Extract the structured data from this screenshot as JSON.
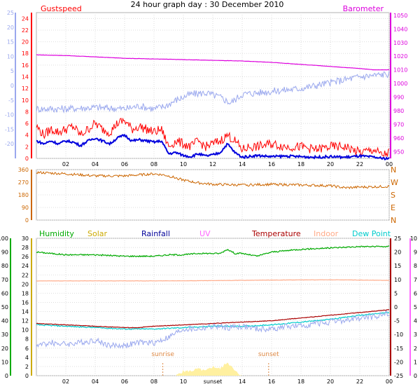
{
  "title": "24 hour graph day : 30 December 2010",
  "colors": {
    "gust": "#ff0000",
    "wind": "#0000dd",
    "temp_left": "#9aa8ee",
    "baro": "#dd00dd",
    "direction": "#cc6600",
    "humidity": "#00aa00",
    "solar": "#ccaa00",
    "rainfall": "#000099",
    "uv": "#ff66ff",
    "temperature": "#aa0000",
    "indoor": "#ffaa88",
    "dewpoint": "#00cccc",
    "grid": "#dddddd",
    "sunmark": "#dd8844",
    "solarfill": "#fff0a0"
  },
  "chart_data": [
    {
      "type": "line",
      "panel": "top",
      "left_label": "Gustspeed",
      "right_label": "Barometer",
      "x_ticks": [
        "02",
        "04",
        "06",
        "08",
        "10",
        "12",
        "14",
        "16",
        "18",
        "20",
        "22",
        "00"
      ],
      "y_left_ticks": [
        "0",
        "2",
        "4",
        "6",
        "8",
        "10",
        "12",
        "14",
        "16",
        "18",
        "20",
        "22",
        "24"
      ],
      "y_left_range": [
        0,
        25
      ],
      "y_far_left_ticks": [
        "-20",
        "-15",
        "-10",
        "-5",
        "0",
        "5",
        "10",
        "15",
        "20",
        "25"
      ],
      "y_far_left_range": [
        -25,
        25
      ],
      "y_right_ticks": [
        "950",
        "960",
        "970",
        "980",
        "990",
        "1000",
        "1010",
        "1020",
        "1030",
        "1040",
        "1050"
      ],
      "y_right_range": [
        945,
        1052
      ],
      "series": [
        {
          "key": "baro",
          "axis": "right",
          "x": [
            0,
            2,
            4,
            6,
            8,
            10,
            12,
            14,
            16,
            18,
            20,
            22,
            23,
            24
          ],
          "y": [
            1021,
            1020.5,
            1019.5,
            1018.5,
            1018,
            1017.5,
            1017,
            1016.5,
            1015.5,
            1014,
            1012.5,
            1011,
            1010,
            1010
          ]
        },
        {
          "key": "temp",
          "axis": "far_left",
          "x": [
            0,
            2,
            4,
            6,
            7,
            8,
            8.8,
            9.5,
            10.5,
            11.5,
            12.5,
            13.2,
            14,
            16,
            18,
            20,
            22,
            24
          ],
          "y": [
            -8,
            -8,
            -7.5,
            -8,
            -7,
            -8,
            -7,
            -5,
            -3,
            -2.5,
            -4,
            -6,
            -3,
            -2,
            -1,
            1,
            3,
            4
          ]
        },
        {
          "key": "gust",
          "axis": "left",
          "x": [
            0,
            0.5,
            1,
            1.5,
            2,
            2.5,
            3,
            3.5,
            4,
            4.5,
            5,
            5.5,
            6,
            6.5,
            7,
            7.5,
            8,
            8.5,
            9,
            9.5,
            10,
            10.5,
            11,
            11.5,
            12,
            12.5,
            13,
            13.5,
            14,
            14.5,
            15,
            16,
            17,
            18,
            19,
            20,
            21,
            22,
            23,
            23.5,
            24
          ],
          "y": [
            5.5,
            4,
            5,
            4.5,
            5,
            5.5,
            4,
            5,
            6,
            5,
            4.5,
            6,
            6.5,
            5,
            5.5,
            5,
            4.5,
            5,
            2,
            3,
            2.5,
            2,
            3,
            2,
            2.5,
            3,
            4,
            3,
            1.5,
            2,
            2,
            2.5,
            2,
            2,
            1.5,
            2,
            2,
            1,
            1.5,
            0.5,
            1
          ]
        },
        {
          "key": "wind",
          "axis": "left",
          "x": [
            0,
            0.5,
            1,
            1.5,
            2,
            2.5,
            3,
            3.5,
            4,
            4.5,
            5,
            5.5,
            6,
            6.5,
            7,
            7.5,
            8,
            8.5,
            9,
            9.5,
            10,
            10.5,
            11,
            11.5,
            12,
            12.5,
            13,
            13.5,
            14,
            15,
            16,
            17,
            18,
            19,
            20,
            21,
            22,
            23,
            23.5,
            24
          ],
          "y": [
            3,
            2.5,
            3,
            2.5,
            3,
            2.8,
            2.2,
            3,
            3.5,
            3,
            2.5,
            3.5,
            4,
            3,
            3.2,
            3,
            2.8,
            3,
            0.8,
            1,
            0.5,
            0.3,
            0.8,
            0.4,
            0.6,
            1,
            2.5,
            1,
            0.2,
            0.5,
            0.3,
            0.4,
            0.3,
            0.2,
            0.3,
            0.2,
            0.4,
            0.2,
            0,
            0
          ]
        }
      ]
    },
    {
      "type": "line",
      "panel": "direction",
      "y_left_ticks": [
        "0",
        "90",
        "180",
        "270",
        "360"
      ],
      "y_range": [
        0,
        360
      ],
      "y_right_ticks": [
        "N",
        "W",
        "S",
        "E",
        "N"
      ],
      "series": [
        {
          "key": "direction",
          "x": [
            0,
            2,
            4,
            6,
            8,
            8.8,
            9.5,
            10,
            11,
            12,
            14,
            16,
            18,
            20,
            21,
            22,
            24
          ],
          "y": [
            340,
            330,
            315,
            315,
            330,
            320,
            300,
            285,
            265,
            255,
            250,
            255,
            250,
            245,
            230,
            235,
            240
          ]
        }
      ]
    },
    {
      "type": "line",
      "panel": "bottom",
      "legend": [
        "Humidity",
        "Solar",
        "Rainfall",
        "UV",
        "Temperature",
        "Indoor",
        "Dew Point"
      ],
      "y_left1_ticks": [
        "0",
        "10",
        "20",
        "30",
        "40",
        "50",
        "60",
        "70",
        "80",
        "90",
        "100"
      ],
      "y_left1_range": [
        0,
        100
      ],
      "y_left2_ticks": [
        "0",
        "2",
        "4",
        "6",
        "8",
        "10",
        "12",
        "14",
        "16",
        "18",
        "20",
        "22",
        "24",
        "26",
        "28",
        "30"
      ],
      "y_left2_range": [
        0,
        30
      ],
      "y_right1_ticks": [
        "-25",
        "-20",
        "-15",
        "-10",
        "-5",
        "0",
        "5",
        "10",
        "15",
        "20",
        "25"
      ],
      "y_right1_range": [
        -25,
        25
      ],
      "y_right2_ticks": [
        "0",
        "1",
        "2",
        "3",
        "4",
        "5",
        "6",
        "7",
        "8",
        "9",
        "10"
      ],
      "y_right2_range": [
        0,
        10
      ],
      "x_ticks": [
        "02",
        "04",
        "06",
        "08",
        "10",
        "sunset",
        "14",
        "16",
        "18",
        "20",
        "22",
        "00"
      ],
      "annotations": {
        "sunrise": 8.6,
        "sunset": 15.8
      },
      "series": [
        {
          "key": "humidity",
          "axis": "left1",
          "x": [
            0,
            2,
            4,
            6,
            8,
            9,
            10,
            11,
            12,
            12.5,
            13,
            13.5,
            14,
            15,
            16,
            18,
            20,
            22,
            24
          ],
          "y": [
            90,
            88,
            88,
            87,
            87,
            88,
            88,
            89,
            89,
            89,
            92,
            89,
            89,
            87,
            90,
            92,
            93,
            94,
            94
          ]
        },
        {
          "key": "indoor",
          "axis": "right1",
          "x": [
            0,
            4,
            8,
            12,
            16,
            20,
            24
          ],
          "y": [
            9.5,
            9.5,
            9.5,
            9.6,
            9.8,
            9.9,
            9.7
          ]
        },
        {
          "key": "temperature",
          "axis": "right1",
          "x": [
            0,
            2,
            4,
            6,
            7,
            8,
            10,
            12,
            14,
            16,
            18,
            20,
            22,
            24
          ],
          "y": [
            -6,
            -6.5,
            -7,
            -7.5,
            -7.5,
            -7,
            -6.5,
            -6,
            -5.5,
            -5,
            -4,
            -3,
            -2,
            -1
          ]
        },
        {
          "key": "dewpoint",
          "axis": "right1",
          "x": [
            0,
            2,
            4,
            6,
            8,
            10,
            12,
            14,
            16,
            18,
            20,
            22,
            24
          ],
          "y": [
            -6.5,
            -7,
            -7.5,
            -8,
            -8,
            -7.5,
            -7,
            -7,
            -6.5,
            -5.5,
            -4.5,
            -3,
            -2
          ]
        },
        {
          "key": "temp_light",
          "axis": "right1",
          "x": [
            0,
            1,
            2,
            3,
            4,
            5,
            6,
            7,
            8,
            9,
            10,
            11,
            12,
            13,
            14,
            15,
            16,
            17,
            18,
            19,
            20,
            21,
            22,
            23,
            24
          ],
          "y": [
            -14,
            -13,
            -13.5,
            -13,
            -12,
            -14,
            -14,
            -13,
            -13,
            -11,
            -8,
            -8,
            -7,
            -7.5,
            -7,
            -8,
            -8,
            -7,
            -7,
            -6,
            -5.5,
            -5,
            -4,
            -3.5,
            -2
          ]
        },
        {
          "key": "solar",
          "axis": "left2",
          "x": [
            9.5,
            10,
            10.5,
            11,
            11.5,
            12,
            12.5,
            13,
            13.5,
            14
          ],
          "y": [
            0,
            1,
            1,
            1.5,
            1,
            2,
            1.5,
            3,
            1,
            0
          ]
        }
      ]
    }
  ]
}
